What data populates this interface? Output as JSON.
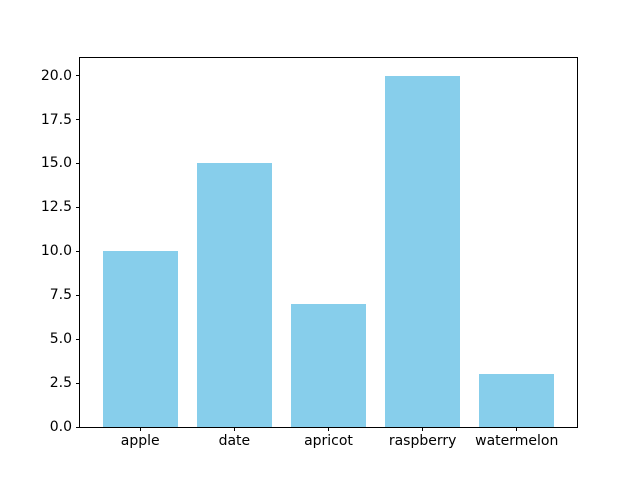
{
  "chart_data": {
    "type": "bar",
    "categories": [
      "apple",
      "date",
      "apricot",
      "raspberry",
      "watermelon"
    ],
    "values": [
      10,
      15,
      7,
      20,
      3
    ],
    "yticks": [
      0.0,
      2.5,
      5.0,
      7.5,
      10.0,
      12.5,
      15.0,
      17.5,
      20.0
    ],
    "ytick_labels": [
      "0.0",
      "2.5",
      "5.0",
      "7.5",
      "10.0",
      "12.5",
      "15.0",
      "17.5",
      "20.0"
    ],
    "ylim": [
      0,
      21
    ],
    "bar_width_fraction": 0.8,
    "x_margin": 0.05,
    "bar_color": "#87CEEB",
    "axes_color": "#000000",
    "background_color": "#FFFFFF",
    "grid": false,
    "legend": "none"
  }
}
